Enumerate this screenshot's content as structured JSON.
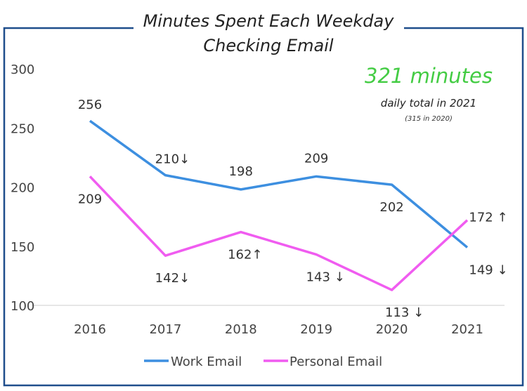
{
  "chart_data": {
    "type": "line",
    "title": "Minutes Spent Each Weekday Checking Email",
    "title_lines": [
      "Minutes Spent Each Weekday",
      "Checking Email"
    ],
    "categories": [
      "2016",
      "2017",
      "2018",
      "2019",
      "2020",
      "2021"
    ],
    "ylim": [
      100,
      300
    ],
    "yticks": [
      "100",
      "150",
      "200",
      "250",
      "300"
    ],
    "grid": false,
    "legend_position": "bottom",
    "series": [
      {
        "name": "Work Email",
        "color": "#3d8fe0",
        "values": [
          256,
          210,
          198,
          209,
          202,
          149
        ],
        "labels": [
          "256",
          "210↓",
          "198",
          "209",
          "202",
          "149 ↓"
        ]
      },
      {
        "name": "Personal Email",
        "color": "#f05cf0",
        "values": [
          209,
          142,
          162,
          143,
          113,
          172
        ],
        "labels": [
          "209",
          "142↓",
          "162↑",
          "143 ↓",
          "113 ↓",
          "172 ↑"
        ]
      }
    ],
    "annotation": {
      "headline": "321 minutes",
      "headline_color": "#44cc44",
      "subline": "daily total in 2021",
      "note": "(315 in 2020)"
    },
    "frame_color": "#1f4e8c"
  }
}
